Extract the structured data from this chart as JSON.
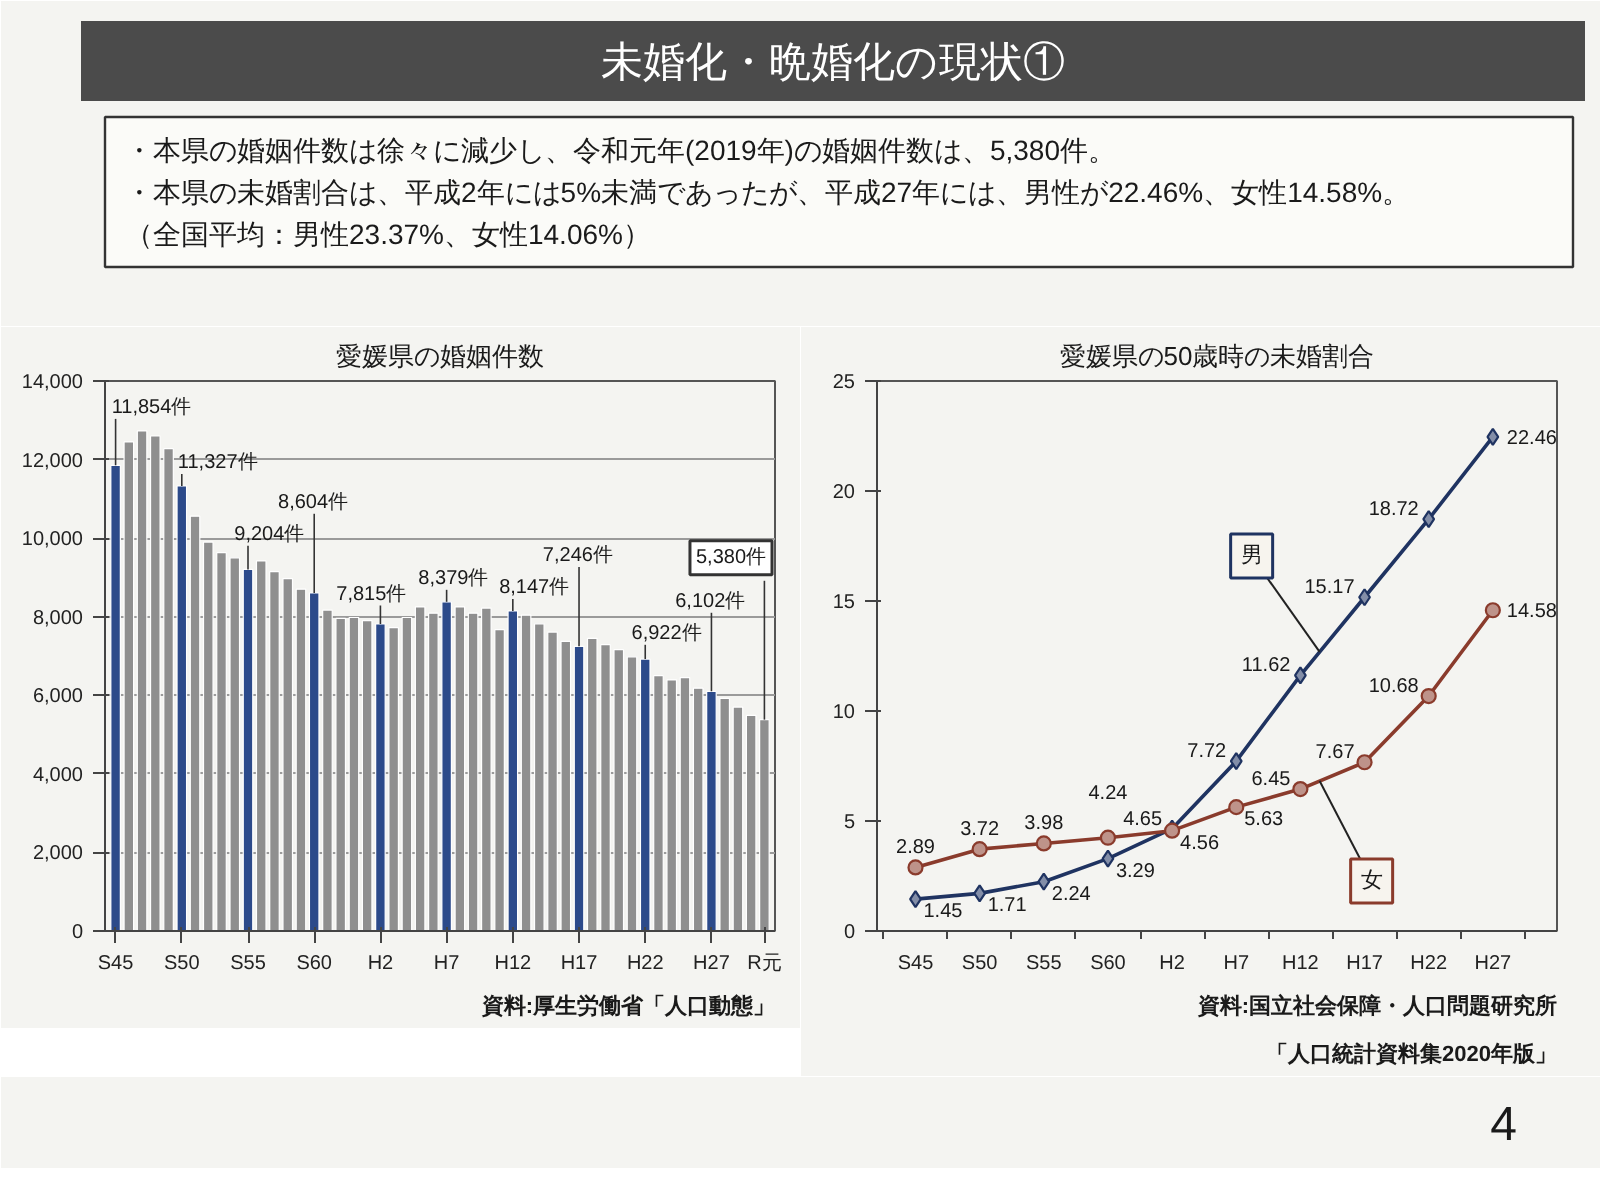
{
  "chart_data": [
    {
      "type": "other",
      "title": "未婚化・晩婚化の現状①",
      "annotations": [
        "・本県の婚姻件数は徐々に減少し、令和元年(2019年)の婚姻件数は、5,380件。",
        "・本県の未婚割合は、平成2年には5%未満であったが、平成27年には、男性が22.46%、女性14.58%。",
        "（全国平均：男性23.37%、女性14.06%）"
      ]
    },
    {
      "type": "bar",
      "title": "愛媛県の婚姻件数",
      "categories": [
        "S45",
        null,
        null,
        null,
        null,
        "S50",
        null,
        null,
        null,
        null,
        "S55",
        null,
        null,
        null,
        null,
        "S60",
        null,
        null,
        null,
        null,
        "H2",
        null,
        null,
        null,
        null,
        "H7",
        null,
        null,
        null,
        null,
        "H12",
        null,
        null,
        null,
        null,
        "H17",
        null,
        null,
        null,
        null,
        "H22",
        null,
        null,
        null,
        null,
        "H27",
        null,
        null,
        null,
        "R元"
      ],
      "values": [
        11854,
        12450,
        12730,
        12600,
        12280,
        11327,
        10560,
        9900,
        9630,
        9500,
        9204,
        9420,
        9150,
        8970,
        8700,
        8604,
        8170,
        7960,
        7980,
        7900,
        7815,
        7720,
        7980,
        8250,
        8090,
        8379,
        8250,
        8090,
        8220,
        7670,
        8147,
        8040,
        7820,
        7610,
        7370,
        7246,
        7450,
        7290,
        7160,
        6980,
        6922,
        6500,
        6390,
        6450,
        6180,
        6102,
        5920,
        5700,
        5490,
        5380
      ],
      "colors": [
        "#2c4a8a",
        "#8f8f8f",
        "#8f8f8f",
        "#8f8f8f",
        "#8f8f8f",
        "#2c4a8a",
        "#8f8f8f",
        "#8f8f8f",
        "#8f8f8f",
        "#8f8f8f",
        "#2c4a8a",
        "#8f8f8f",
        "#8f8f8f",
        "#8f8f8f",
        "#8f8f8f",
        "#2c4a8a",
        "#8f8f8f",
        "#8f8f8f",
        "#8f8f8f",
        "#8f8f8f",
        "#2c4a8a",
        "#8f8f8f",
        "#8f8f8f",
        "#8f8f8f",
        "#8f8f8f",
        "#2c4a8a",
        "#8f8f8f",
        "#8f8f8f",
        "#8f8f8f",
        "#8f8f8f",
        "#2c4a8a",
        "#8f8f8f",
        "#8f8f8f",
        "#8f8f8f",
        "#8f8f8f",
        "#2c4a8a",
        "#8f8f8f",
        "#8f8f8f",
        "#8f8f8f",
        "#8f8f8f",
        "#2c4a8a",
        "#8f8f8f",
        "#8f8f8f",
        "#8f8f8f",
        "#8f8f8f",
        "#2c4a8a",
        "#8f8f8f",
        "#8f8f8f",
        "#8f8f8f",
        "#8f8f8f"
      ],
      "value_labels": [
        "11,854件",
        null,
        null,
        null,
        null,
        "11,327件",
        null,
        null,
        null,
        null,
        "9,204件",
        null,
        null,
        null,
        null,
        "8,604件",
        null,
        null,
        null,
        null,
        "7,815件",
        null,
        null,
        null,
        null,
        "8,379件",
        null,
        null,
        null,
        null,
        "8,147件",
        null,
        null,
        null,
        null,
        "7,246件",
        null,
        null,
        null,
        null,
        "6,922件",
        null,
        null,
        null,
        null,
        "6,102件",
        null,
        null,
        null,
        "5,380件"
      ],
      "ylim": [
        0,
        14000
      ],
      "yticks": [
        0,
        {
          "value": 2000,
          "label": "2,000"
        },
        {
          "value": 4000,
          "label": "4,000"
        },
        {
          "value": 6000,
          "label": "6,000"
        },
        {
          "value": 8000,
          "label": "8,000"
        },
        {
          "value": 10000,
          "label": "10,000"
        },
        {
          "value": 12000,
          "label": "12,000"
        },
        {
          "value": 14000,
          "label": "14,000"
        }
      ],
      "grid": "y",
      "annotations": [
        "資料:厚生労働省「人口動態」"
      ]
    },
    {
      "type": "line",
      "title": "愛媛県の50歳時の未婚割合",
      "categories": [
        "S45",
        "S50",
        "S55",
        "S60",
        "H2",
        "H7",
        "H12",
        "H17",
        "H22",
        "H27"
      ],
      "series": [
        {
          "name": "男",
          "color": "#1f3361",
          "marker": "diamond",
          "values": [
            1.45,
            1.71,
            2.24,
            3.29,
            4.65,
            7.72,
            11.62,
            15.17,
            18.72,
            22.46
          ]
        },
        {
          "name": "女",
          "color": "#8a3b2c",
          "marker": "circle",
          "values": [
            2.89,
            3.72,
            3.98,
            4.24,
            4.56,
            5.63,
            6.45,
            7.67,
            10.68,
            14.58
          ]
        }
      ],
      "ylim": [
        0,
        25
      ],
      "yticks": [
        0,
        5,
        10,
        15,
        20,
        25
      ],
      "data_labels": true,
      "annotations": [
        "資料:国立社会保障・人口問題研究所",
        "「人口統計資料集2020年版」"
      ]
    },
    {
      "type": "other",
      "annotations": [
        "4"
      ]
    }
  ]
}
